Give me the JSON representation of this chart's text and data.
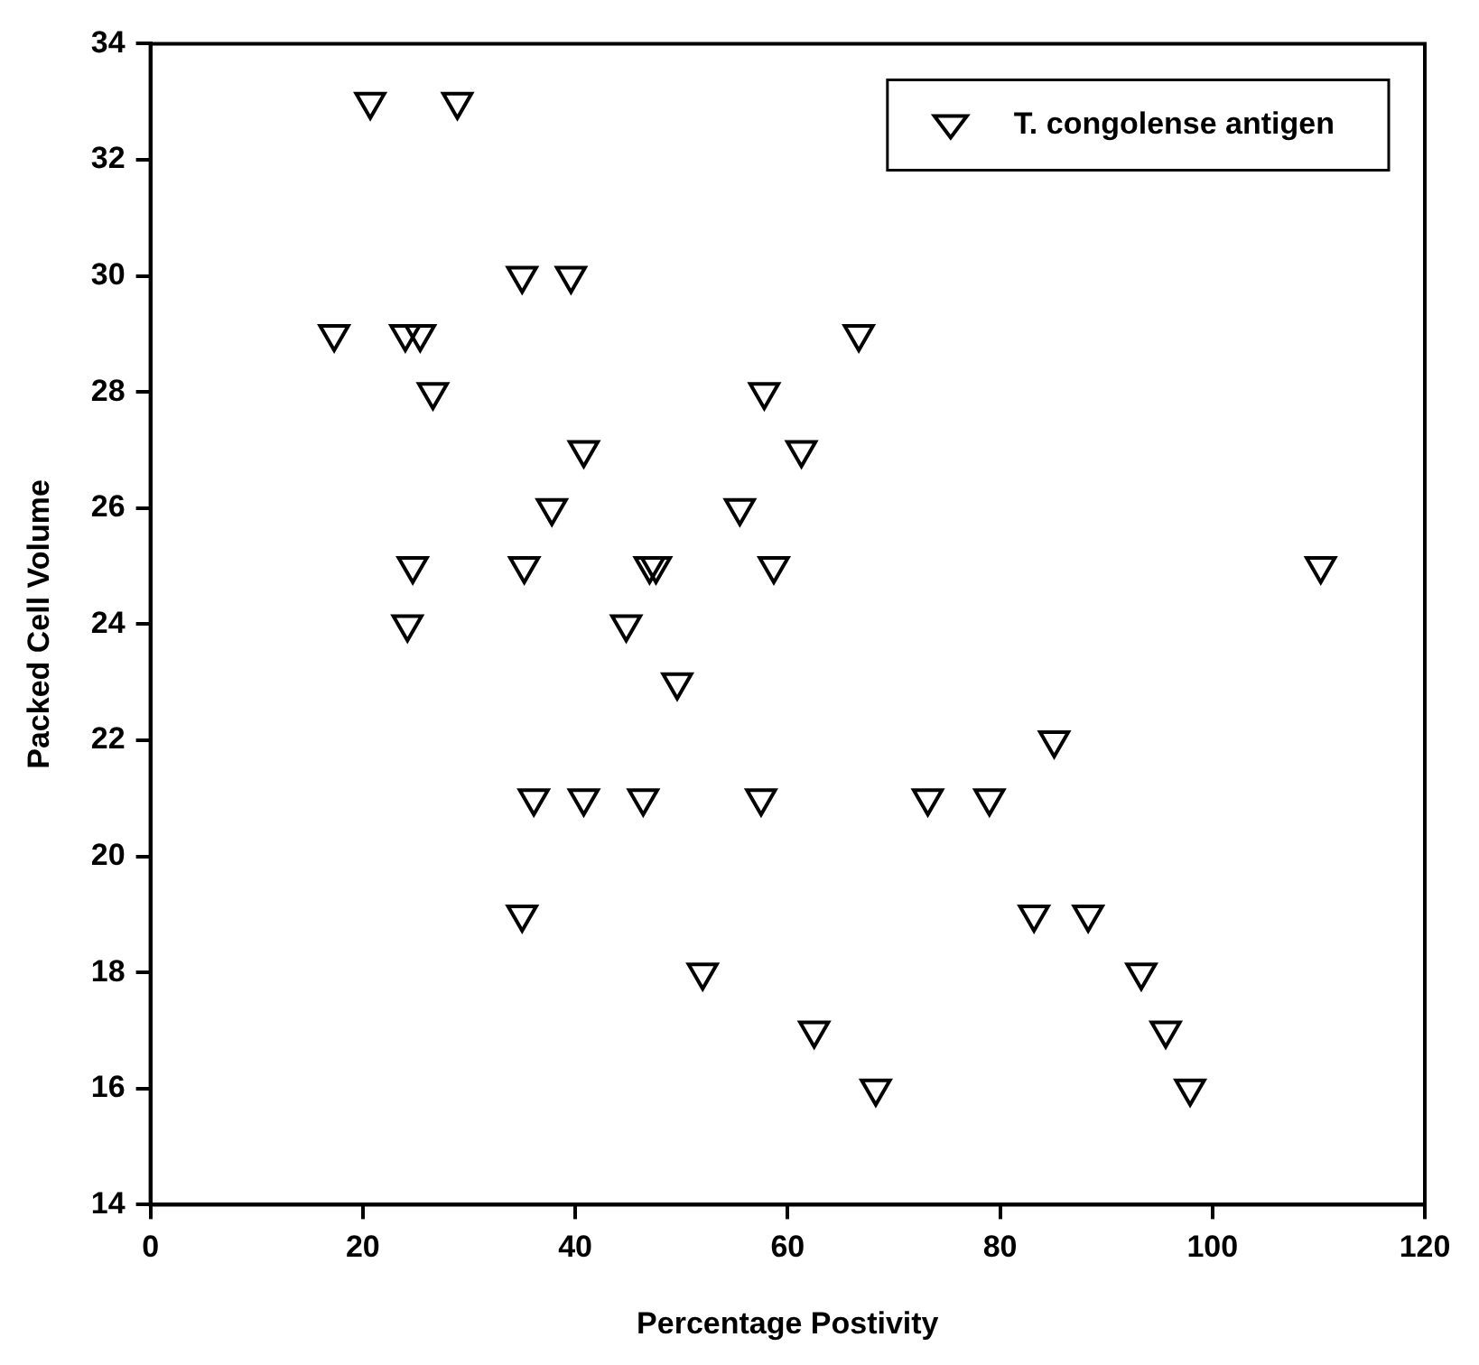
{
  "chart_data": {
    "type": "scatter",
    "xlabel": "Percentage Postivity",
    "ylabel": "Packed Cell Volume",
    "xlim": [
      0,
      120
    ],
    "xticks": [
      0,
      20,
      40,
      60,
      80,
      100,
      120
    ],
    "ylim": [
      14,
      34
    ],
    "yticks": [
      14,
      16,
      18,
      20,
      22,
      24,
      26,
      28,
      30,
      32,
      34
    ],
    "grid": false,
    "legend": "top right",
    "marker": "triangle",
    "series": [
      {
        "name": "T. congolense antigen",
        "color": "#000000",
        "x": [
          20.7,
          28.9,
          35.0,
          39.6,
          17.3,
          24.0,
          25.4,
          66.7,
          26.6,
          57.8,
          40.8,
          61.3,
          37.8,
          55.5,
          24.7,
          35.2,
          47.0,
          47.6,
          58.7,
          24.2,
          44.8,
          49.6,
          36.1,
          40.8,
          46.4,
          57.5,
          73.2,
          79.0,
          85.1,
          35.0,
          83.2,
          88.3,
          52.0,
          93.3,
          62.5,
          95.6,
          68.3,
          97.9,
          110.2
        ],
        "values": [
          33,
          33,
          30,
          30,
          29,
          29,
          29,
          29,
          28,
          28,
          27,
          27,
          26,
          26,
          25,
          25,
          25,
          25,
          25,
          24,
          24,
          23,
          21,
          21,
          21,
          21,
          21,
          21,
          22,
          19,
          19,
          19,
          18,
          18,
          17,
          17,
          16,
          16,
          25
        ]
      }
    ]
  }
}
